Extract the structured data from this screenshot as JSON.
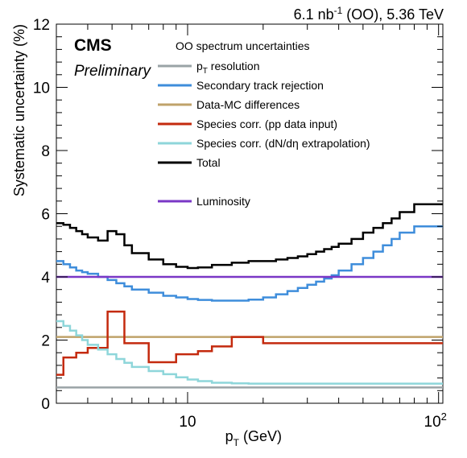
{
  "header": {
    "lumi_prefix": "6.1 nb",
    "lumi_exp": "-1",
    "lumi_suffix": " (OO), 5.36 TeV",
    "experiment": "CMS",
    "status": "Preliminary"
  },
  "chart_data": {
    "type": "line",
    "title": "",
    "xlabel": "p",
    "xlabel_sub": "T",
    "xlabel_unit": " (GeV)",
    "ylabel": "Systematic uncertainty (%)",
    "xscale": "log",
    "xlim": [
      3.0,
      104.0
    ],
    "ylim": [
      0,
      12
    ],
    "y_ticks": [
      0,
      2,
      4,
      6,
      8,
      10,
      12
    ],
    "x_tick_labels": [
      {
        "value": 10,
        "label": "10",
        "exp": ""
      },
      {
        "value": 100,
        "label": "10",
        "exp": "2"
      }
    ],
    "legend_title": "OO spectrum uncertainties",
    "legend_position": "top-center",
    "bin_edges": [
      3.0,
      3.2,
      3.4,
      3.6,
      3.8,
      4.0,
      4.4,
      4.8,
      5.2,
      5.6,
      6.0,
      7.0,
      8.0,
      9.0,
      10.0,
      11.0,
      12.5,
      15.0,
      17.5,
      20.0,
      22.5,
      25.0,
      27.5,
      30.0,
      32.5,
      35.0,
      37.5,
      40.0,
      45.0,
      50.0,
      55.0,
      60.0,
      65.0,
      70.0,
      80.0,
      90.0,
      104.0
    ],
    "series": [
      {
        "name": "p",
        "name_sub": "T",
        "name_rest": " resolution",
        "color": "#9aa3a6",
        "width": 2.5,
        "values": [
          0.5,
          0.5,
          0.5,
          0.5,
          0.5,
          0.5,
          0.5,
          0.5,
          0.5,
          0.5,
          0.5,
          0.5,
          0.5,
          0.5,
          0.5,
          0.5,
          0.5,
          0.5,
          0.5,
          0.5,
          0.5,
          0.5,
          0.5,
          0.5,
          0.5,
          0.5,
          0.5,
          0.5,
          0.5,
          0.5,
          0.5,
          0.5,
          0.5,
          0.5,
          0.5,
          0.5
        ]
      },
      {
        "name": "Secondary track rejection",
        "color": "#3e8ddb",
        "width": 2.5,
        "values": [
          4.5,
          4.4,
          4.3,
          4.2,
          4.15,
          4.1,
          4.0,
          3.9,
          3.8,
          3.7,
          3.6,
          3.5,
          3.4,
          3.35,
          3.3,
          3.27,
          3.25,
          3.25,
          3.28,
          3.35,
          3.45,
          3.55,
          3.65,
          3.75,
          3.85,
          3.95,
          4.05,
          4.2,
          4.4,
          4.6,
          4.8,
          5.0,
          5.2,
          5.4,
          5.6,
          5.6
        ]
      },
      {
        "name": "Data-MC differences",
        "color": "#bfa26a",
        "width": 2.5,
        "values": [
          2.1,
          2.1,
          2.1,
          2.1,
          2.1,
          2.1,
          2.1,
          2.1,
          2.1,
          2.1,
          2.1,
          2.1,
          2.1,
          2.1,
          2.1,
          2.1,
          2.1,
          2.1,
          2.1,
          2.1,
          2.1,
          2.1,
          2.1,
          2.1,
          2.1,
          2.1,
          2.1,
          2.1,
          2.1,
          2.1,
          2.1,
          2.1,
          2.1,
          2.1,
          2.1,
          2.1
        ]
      },
      {
        "name": "Species corr. (pp data input)",
        "color": "#c42a0e",
        "width": 2.5,
        "values": [
          0.9,
          1.45,
          1.45,
          1.6,
          1.6,
          1.75,
          1.75,
          2.9,
          2.9,
          1.9,
          1.9,
          1.3,
          1.3,
          1.55,
          1.55,
          1.65,
          1.8,
          2.1,
          2.1,
          1.9,
          1.9,
          1.9,
          1.9,
          1.9,
          1.9,
          1.9,
          1.9,
          1.9,
          1.9,
          1.9,
          1.9,
          1.9,
          1.9,
          1.9,
          1.9,
          1.9
        ]
      },
      {
        "name": "Species corr. (dN/dη extrapolation)",
        "color": "#8ed6da",
        "width": 2.5,
        "values": [
          2.6,
          2.45,
          2.3,
          2.15,
          2.0,
          1.85,
          1.7,
          1.55,
          1.4,
          1.28,
          1.15,
          1.02,
          0.92,
          0.82,
          0.75,
          0.7,
          0.65,
          0.63,
          0.62,
          0.62,
          0.62,
          0.62,
          0.62,
          0.62,
          0.62,
          0.62,
          0.62,
          0.62,
          0.62,
          0.62,
          0.62,
          0.62,
          0.62,
          0.62,
          0.62,
          0.62
        ]
      },
      {
        "name": "Total",
        "color": "#000000",
        "width": 2.5,
        "values": [
          5.7,
          5.65,
          5.55,
          5.45,
          5.35,
          5.25,
          5.15,
          5.45,
          5.35,
          5.0,
          4.75,
          4.55,
          4.4,
          4.32,
          4.28,
          4.3,
          4.38,
          4.45,
          4.5,
          4.5,
          4.55,
          4.6,
          4.65,
          4.72,
          4.8,
          4.88,
          4.95,
          5.05,
          5.2,
          5.4,
          5.55,
          5.7,
          5.85,
          6.05,
          6.3,
          6.3
        ]
      }
    ],
    "extra_legend": {
      "name": "Luminosity",
      "color": "#7a37c6",
      "width": 2.5,
      "value": 4.0
    }
  }
}
